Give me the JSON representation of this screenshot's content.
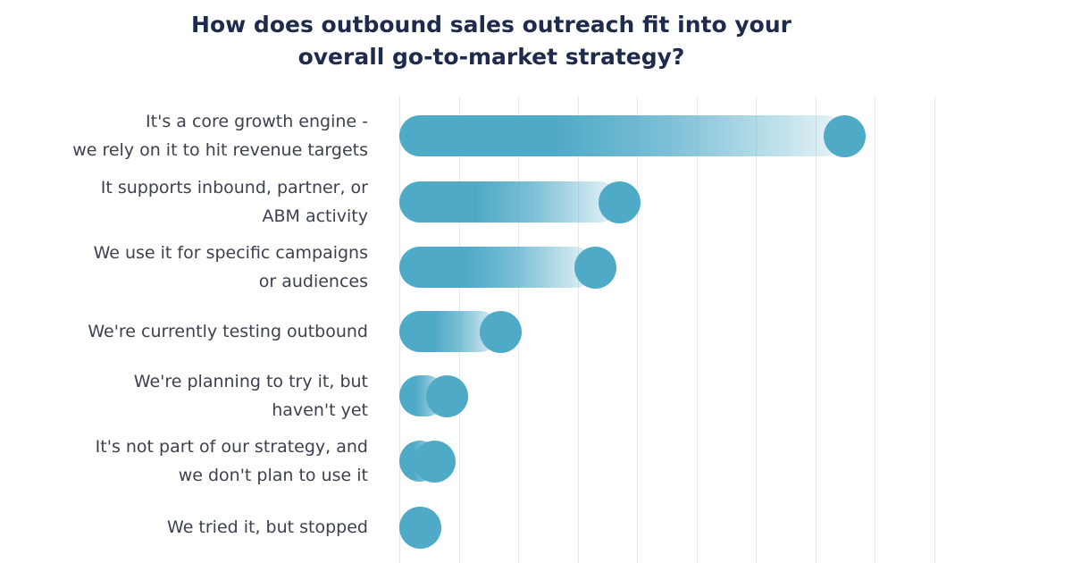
{
  "title": {
    "line1": "How does outbound sales outreach fit into your",
    "line2": "overall go-to-market strategy?"
  },
  "colors": {
    "bar": "#4faac8",
    "title": "#1f2b4d",
    "label": "#3c4150",
    "grid": "#e6e9ec"
  },
  "chart_data": {
    "type": "bar",
    "orientation": "horizontal",
    "title": "How does outbound sales outreach fit into your overall go-to-market strategy?",
    "xlabel": "",
    "ylabel": "",
    "value_note": "No axis ticks or data labels are shown. Values are estimated from the circle positions against the unlabeled gridlines, in gridline units (0 at the left axis). They show relative size only and are not real percentages.",
    "categories": [
      "It's a core growth engine - we rely on it to hit revenue targets",
      "It supports inbound, partner, or ABM activity",
      "We use it for specific campaigns or audiences",
      "We're currently testing outbound",
      "We're planning to try it, but haven't yet",
      "It's not part of our strategy, and we don't plan to use it",
      "We tried it, but stopped"
    ],
    "values": [
      7.5,
      3.7,
      3.3,
      1.7,
      0.8,
      0.6,
      0.35
    ],
    "xlim": [
      0,
      9
    ],
    "gridlines": 10,
    "grid": true,
    "legend": null,
    "series_color": "#4faac8"
  },
  "labels": [
    {
      "l1": "It's a core growth engine -",
      "l2": "we rely on it to hit revenue targets"
    },
    {
      "l1": "It supports inbound, partner, or",
      "l2": "ABM activity"
    },
    {
      "l1": "We use it for specific campaigns",
      "l2": "or audiences"
    },
    {
      "l1": "We're currently testing outbound",
      "l2": ""
    },
    {
      "l1": "We're planning to try it, but",
      "l2": "haven't yet"
    },
    {
      "l1": "It's not part of our strategy, and",
      "l2": "we don't plan to use it"
    },
    {
      "l1": "We tried it, but stopped",
      "l2": ""
    }
  ]
}
